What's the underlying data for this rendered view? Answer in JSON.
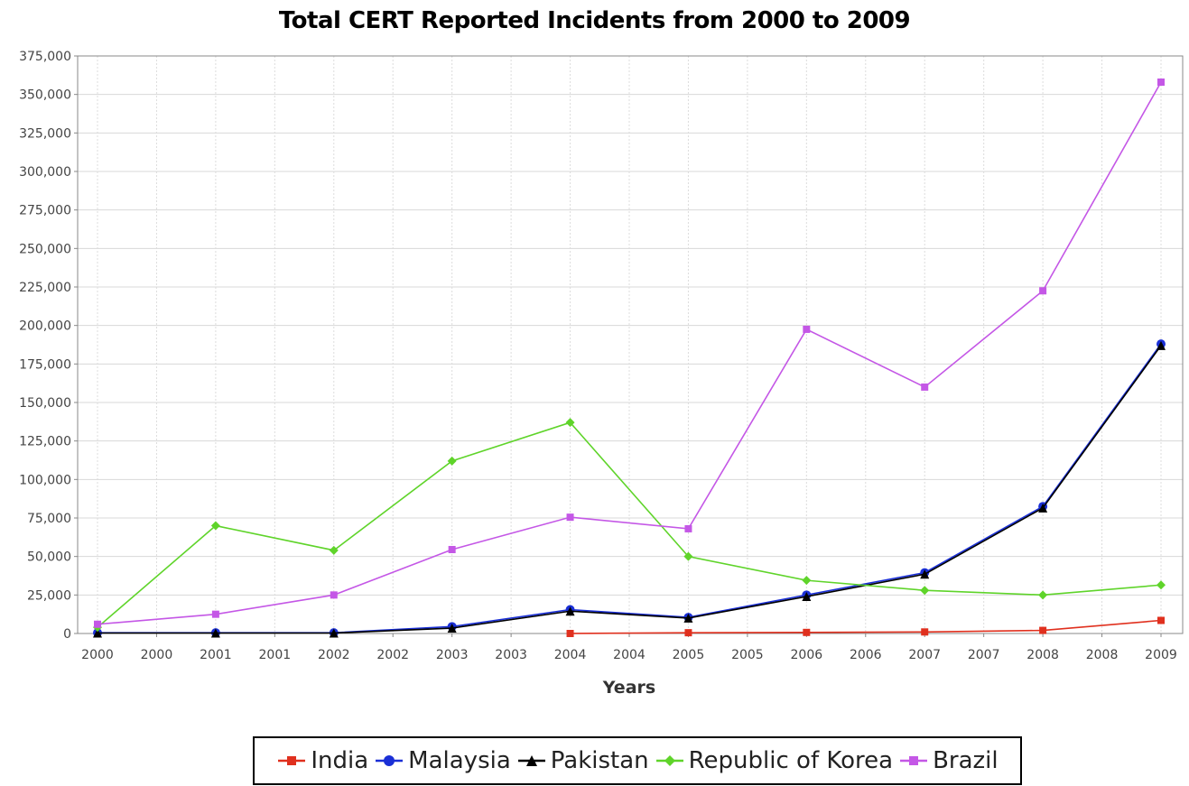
{
  "chart_data": {
    "type": "line",
    "title": "Total CERT Reported Incidents from 2000 to 2009",
    "xlabel": "Years",
    "ylabel": "",
    "x_tick_labels": [
      "2000",
      "2000",
      "2001",
      "2001",
      "2002",
      "2002",
      "2003",
      "2003",
      "2004",
      "2004",
      "2005",
      "2005",
      "2006",
      "2006",
      "2007",
      "2007",
      "2008",
      "2008",
      "2009"
    ],
    "y_ticks": [
      "0",
      "25,000",
      "50,000",
      "75,000",
      "100,000",
      "125,000",
      "150,000",
      "175,000",
      "200,000",
      "225,000",
      "250,000",
      "275,000",
      "300,000",
      "325,000",
      "350,000",
      "375,000"
    ],
    "ylim": [
      0,
      375000
    ],
    "grid": true,
    "legend_position": "bottom",
    "series": [
      {
        "name": "India",
        "color": "#e0301e",
        "marker": "square",
        "points": [
          [
            2004,
            0
          ],
          [
            2005,
            500
          ],
          [
            2006,
            700
          ],
          [
            2007,
            1000
          ],
          [
            2008,
            2000
          ],
          [
            2009,
            8500
          ]
        ]
      },
      {
        "name": "Malaysia",
        "color": "#1a2fd6",
        "marker": "circle",
        "points": [
          [
            2000,
            500
          ],
          [
            2001,
            500
          ],
          [
            2002,
            500
          ],
          [
            2003,
            4500
          ],
          [
            2004,
            15500
          ],
          [
            2005,
            10500
          ],
          [
            2006,
            25000
          ],
          [
            2007,
            39500
          ],
          [
            2008,
            82500
          ],
          [
            2009,
            188000
          ]
        ]
      },
      {
        "name": "Pakistan",
        "color": "#000000",
        "marker": "triangle",
        "points": [
          [
            2000,
            300
          ],
          [
            2001,
            300
          ],
          [
            2002,
            300
          ],
          [
            2003,
            3500
          ],
          [
            2004,
            14500
          ],
          [
            2005,
            10000
          ],
          [
            2006,
            24000
          ],
          [
            2007,
            38500
          ],
          [
            2008,
            81500
          ],
          [
            2009,
            187000
          ]
        ]
      },
      {
        "name": "Republic of Korea",
        "color": "#5fd42a",
        "marker": "diamond",
        "points": [
          [
            2000,
            4000
          ],
          [
            2001,
            70000
          ],
          [
            2002,
            54000
          ],
          [
            2003,
            112000
          ],
          [
            2004,
            137000
          ],
          [
            2005,
            50000
          ],
          [
            2006,
            34500
          ],
          [
            2007,
            28000
          ],
          [
            2008,
            25000
          ],
          [
            2009,
            31500
          ]
        ]
      },
      {
        "name": "Brazil",
        "color": "#c457e6",
        "marker": "square",
        "points": [
          [
            2000,
            6000
          ],
          [
            2001,
            12500
          ],
          [
            2002,
            25000
          ],
          [
            2003,
            54500
          ],
          [
            2004,
            75500
          ],
          [
            2005,
            68000
          ],
          [
            2006,
            197500
          ],
          [
            2007,
            160000
          ],
          [
            2008,
            222500
          ],
          [
            2009,
            358000
          ]
        ]
      }
    ]
  }
}
